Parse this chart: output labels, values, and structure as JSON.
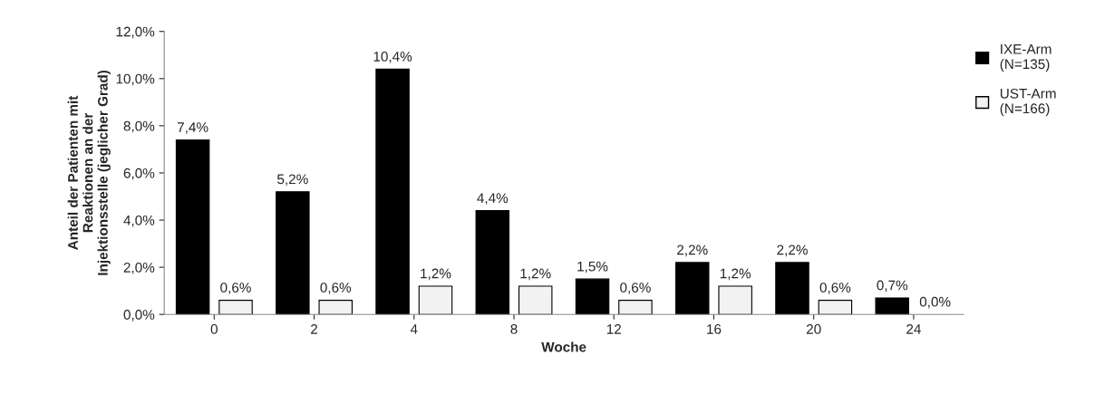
{
  "chart_data": {
    "type": "bar",
    "xlabel": "Woche",
    "ylabel": "Anteil der Patienten mit\nReaktionen an der\nInjektionsstelle (jeglicher Grad)",
    "categories": [
      "0",
      "2",
      "4",
      "8",
      "12",
      "16",
      "20",
      "24"
    ],
    "series": [
      {
        "name": "IXE-Arm\n(N=135)",
        "color": "#000000",
        "values": [
          7.4,
          5.2,
          10.4,
          4.4,
          1.5,
          2.2,
          2.2,
          0.7
        ],
        "value_labels": [
          "7,4%",
          "5,2%",
          "10,4%",
          "4,4%",
          "1,5%",
          "2,2%",
          "2,2%",
          "0,7%"
        ]
      },
      {
        "name": "UST-Arm\n(N=166)",
        "color": "#f2f2f2",
        "values": [
          0.6,
          0.6,
          1.2,
          1.2,
          0.6,
          1.2,
          0.6,
          0.0
        ],
        "value_labels": [
          "0,6%",
          "0,6%",
          "1,2%",
          "1,2%",
          "0,6%",
          "1,2%",
          "0,6%",
          "0,0%"
        ]
      }
    ],
    "ylim": [
      0,
      12
    ],
    "yticks": [
      {
        "value": 0,
        "label": "0,0%"
      },
      {
        "value": 2,
        "label": "2,0%"
      },
      {
        "value": 4,
        "label": "4,0%"
      },
      {
        "value": 6,
        "label": "6,0%"
      },
      {
        "value": 8,
        "label": "8,0%"
      },
      {
        "value": 10,
        "label": "10,0%"
      },
      {
        "value": 12,
        "label": "12,0%"
      }
    ],
    "grid": false,
    "legend": "right"
  }
}
